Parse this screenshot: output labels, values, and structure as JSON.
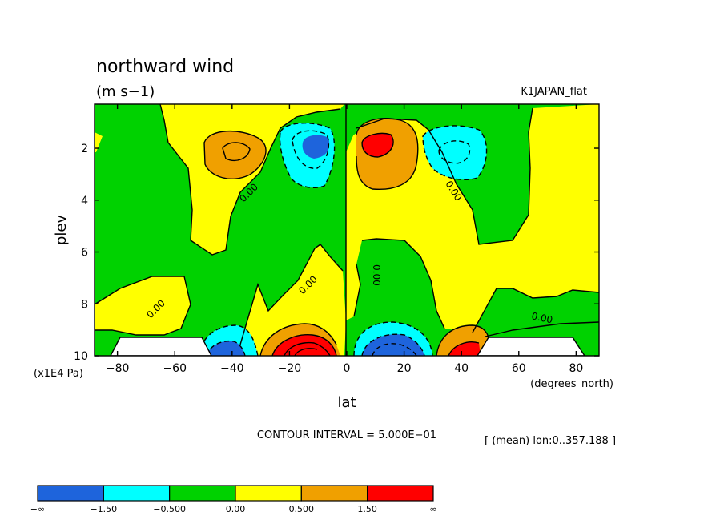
{
  "chart_data": {
    "type": "heatmap",
    "title": "northward wind",
    "units": "(m s−1)",
    "dataset": "K1JAPAN_flat",
    "xlabel": "lat",
    "x_units": "(degrees_north)",
    "ylabel": "plev",
    "y_units": "(x1E4 Pa)",
    "xlim": [
      -88,
      88
    ],
    "ylim": [
      10,
      0.3
    ],
    "x_ticks": [
      -80,
      -60,
      -40,
      -20,
      0,
      20,
      40,
      60,
      80
    ],
    "x_tick_labels": [
      "−80",
      "−60",
      "−40",
      "−20",
      "0",
      "20",
      "40",
      "60",
      "80"
    ],
    "y_ticks": [
      2,
      4,
      6,
      8,
      10
    ],
    "y_tick_labels": [
      "2",
      "4",
      "6",
      "8",
      "10"
    ],
    "grid": false,
    "contour_interval_text": "CONTOUR INTERVAL = 5.000E−01",
    "mean_text": "[ (mean) lon:0..357.188 ]",
    "contour_labels": [
      "0.00",
      "0.00",
      "0.00",
      "0.00",
      "0.00",
      "0.00"
    ],
    "levels": [
      "−∞",
      "−1.50",
      "−0.500",
      "0.00",
      "0.500",
      "1.50",
      "∞"
    ],
    "bands": [
      {
        "range": "< −1.5",
        "color": "#1e64dc"
      },
      {
        "range": "−1.5 to −0.5",
        "color": "#00ffff"
      },
      {
        "range": "−0.5 to 0",
        "color": "#00d200"
      },
      {
        "range": "0 to 0.5",
        "color": "#ffff00"
      },
      {
        "range": "0.5 to 1.5",
        "color": "#f0a000"
      },
      {
        "range": "> 1.5",
        "color": "#ff0000"
      }
    ],
    "features": [
      {
        "name": "NH upper positive cell",
        "lat": 11,
        "plev": 1.8,
        "peak": 2.0
      },
      {
        "name": "SH upper negative cell",
        "lat": -13,
        "plev": 1.8,
        "peak": -2.0
      },
      {
        "name": "SH upper positive cell",
        "lat": -40,
        "plev": 2.0,
        "peak": 1.5
      },
      {
        "name": "NH upper negative cell",
        "lat": 40,
        "plev": 1.8,
        "peak": -1.5
      },
      {
        "name": "SH lower positive cell",
        "lat": -15,
        "plev": 10,
        "peak": 3.5
      },
      {
        "name": "NH lower negative cell",
        "lat": 15,
        "plev": 10,
        "peak": -3.5
      },
      {
        "name": "SH lower negative cell",
        "lat": -43,
        "plev": 10,
        "peak": -2.0
      },
      {
        "name": "NH lower positive cell",
        "lat": 43,
        "plev": 10,
        "peak": 2.0
      }
    ]
  }
}
